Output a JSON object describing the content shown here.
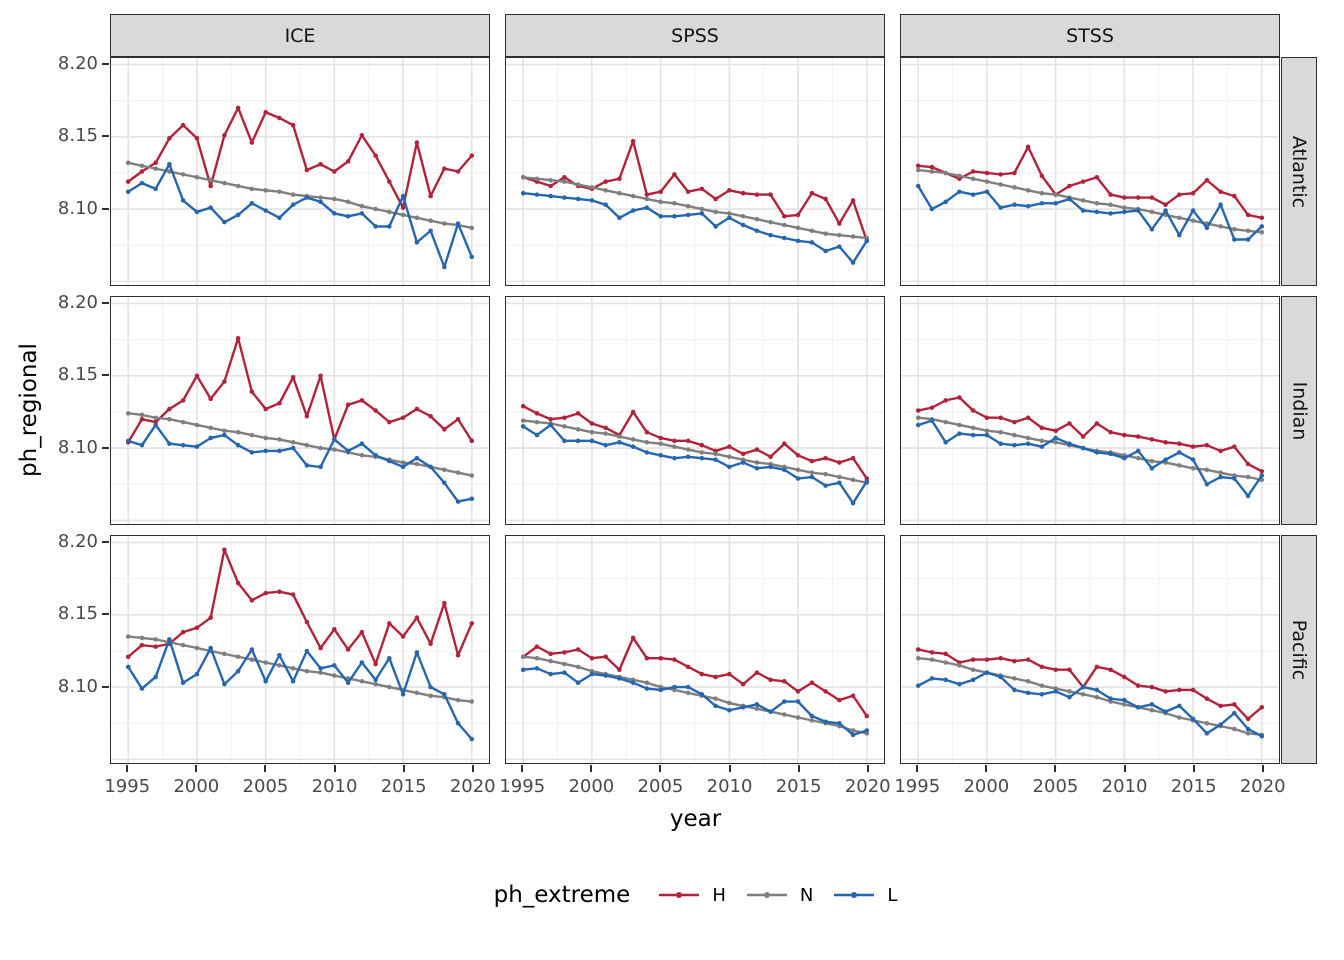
{
  "axes": {
    "y_title": "ph_regional",
    "x_title": "year",
    "y_tick_labels": [
      "8.20",
      "8.15",
      "8.10"
    ],
    "x_tick_labels": [
      "1995",
      "2000",
      "2005",
      "2010",
      "2015",
      "2020"
    ]
  },
  "legend": {
    "title": "ph_extreme",
    "entries": [
      {
        "label": "H",
        "color": "#B2233B"
      },
      {
        "label": "N",
        "color": "#7F7F7F"
      },
      {
        "label": "L",
        "color": "#2566AE"
      }
    ]
  },
  "styles": {
    "grid_major": "#E3E3E3",
    "grid_minor": "#F1F1F1",
    "strip_fill": "#D9D9D9",
    "panel_border": "#2e2e2e",
    "axis_text": "#4a4a4a"
  },
  "chart_data": {
    "type": "line",
    "title": "",
    "xlabel": "year",
    "ylabel": "ph_regional",
    "legend_title": "ph_extreme",
    "legend_position": "bottom",
    "grid": true,
    "facet_cols": [
      "ICE",
      "SPSS",
      "STSS"
    ],
    "facet_rows": [
      "Atlantic",
      "Indian",
      "Pacific"
    ],
    "x": [
      1995,
      1996,
      1997,
      1998,
      1999,
      2000,
      2001,
      2002,
      2003,
      2004,
      2005,
      2006,
      2007,
      2008,
      2009,
      2010,
      2011,
      2012,
      2013,
      2014,
      2015,
      2016,
      2017,
      2018,
      2019,
      2020
    ],
    "x_ticks": [
      1995,
      2000,
      2005,
      2010,
      2015,
      2020
    ],
    "y_ticks": [
      8.2,
      8.15,
      8.1
    ],
    "y_grid_major": [
      8.05,
      8.1,
      8.15,
      8.2
    ],
    "y_grid_minor": [
      8.075,
      8.125,
      8.175
    ],
    "x_grid_minor": [
      1997.5,
      2002.5,
      2007.5,
      2012.5,
      2017.5
    ],
    "xlim": [
      1993.75,
      2021.25
    ],
    "ylim": [
      8.0475,
      8.2045
    ],
    "series_names": [
      "H",
      "N",
      "L"
    ],
    "series_colors": {
      "H": "#B2233B",
      "N": "#7F7F7F",
      "L": "#2566AE"
    },
    "panels": [
      {
        "row": "Atlantic",
        "col": "ICE",
        "H": [
          8.119,
          8.126,
          8.132,
          8.149,
          8.158,
          8.149,
          8.116,
          8.151,
          8.17,
          8.146,
          8.167,
          8.163,
          8.158,
          8.127,
          8.131,
          8.126,
          8.133,
          8.151,
          8.137,
          8.119,
          8.101,
          8.146,
          8.109,
          8.128,
          8.126,
          8.137
        ],
        "N": [
          8.132,
          8.13,
          8.128,
          8.126,
          8.124,
          8.122,
          8.12,
          8.118,
          8.116,
          8.114,
          8.113,
          8.112,
          8.11,
          8.109,
          8.108,
          8.107,
          8.105,
          8.102,
          8.1,
          8.098,
          8.096,
          8.094,
          8.092,
          8.09,
          8.089,
          8.087
        ],
        "L": [
          8.112,
          8.118,
          8.114,
          8.131,
          8.106,
          8.098,
          8.101,
          8.091,
          8.096,
          8.104,
          8.099,
          8.094,
          8.103,
          8.108,
          8.105,
          8.097,
          8.095,
          8.097,
          8.088,
          8.088,
          8.109,
          8.077,
          8.085,
          8.06,
          8.09,
          8.067
        ]
      },
      {
        "row": "Atlantic",
        "col": "SPSS",
        "H": [
          8.122,
          8.119,
          8.116,
          8.122,
          8.116,
          8.114,
          8.119,
          8.121,
          8.147,
          8.11,
          8.112,
          8.124,
          8.112,
          8.114,
          8.107,
          8.113,
          8.111,
          8.11,
          8.11,
          8.095,
          8.096,
          8.111,
          8.107,
          8.09,
          8.106,
          8.078
        ],
        "N": [
          8.122,
          8.121,
          8.12,
          8.119,
          8.117,
          8.115,
          8.113,
          8.111,
          8.109,
          8.107,
          8.105,
          8.104,
          8.102,
          8.1,
          8.098,
          8.097,
          8.095,
          8.093,
          8.091,
          8.089,
          8.087,
          8.085,
          8.083,
          8.082,
          8.081,
          8.08
        ],
        "L": [
          8.111,
          8.11,
          8.109,
          8.108,
          8.107,
          8.106,
          8.103,
          8.094,
          8.099,
          8.101,
          8.095,
          8.095,
          8.096,
          8.097,
          8.088,
          8.094,
          8.089,
          8.085,
          8.082,
          8.08,
          8.078,
          8.077,
          8.071,
          8.074,
          8.063,
          8.078
        ]
      },
      {
        "row": "Atlantic",
        "col": "STSS",
        "H": [
          8.13,
          8.129,
          8.125,
          8.121,
          8.126,
          8.125,
          8.124,
          8.125,
          8.143,
          8.123,
          8.11,
          8.116,
          8.119,
          8.122,
          8.11,
          8.108,
          8.108,
          8.108,
          8.103,
          8.11,
          8.111,
          8.12,
          8.112,
          8.109,
          8.096,
          8.094
        ],
        "N": [
          8.127,
          8.126,
          8.125,
          8.123,
          8.121,
          8.119,
          8.117,
          8.115,
          8.113,
          8.111,
          8.11,
          8.108,
          8.106,
          8.104,
          8.103,
          8.101,
          8.1,
          8.098,
          8.096,
          8.094,
          8.092,
          8.09,
          8.088,
          8.086,
          8.085,
          8.084
        ],
        "L": [
          8.116,
          8.1,
          8.105,
          8.112,
          8.11,
          8.112,
          8.101,
          8.103,
          8.102,
          8.104,
          8.104,
          8.107,
          8.099,
          8.098,
          8.097,
          8.098,
          8.099,
          8.086,
          8.099,
          8.082,
          8.099,
          8.087,
          8.103,
          8.079,
          8.079,
          8.088
        ]
      },
      {
        "row": "Indian",
        "col": "ICE",
        "H": [
          8.104,
          8.12,
          8.118,
          8.127,
          8.133,
          8.15,
          8.134,
          8.146,
          8.176,
          8.139,
          8.127,
          8.131,
          8.149,
          8.122,
          8.15,
          8.106,
          8.13,
          8.133,
          8.126,
          8.118,
          8.121,
          8.127,
          8.122,
          8.113,
          8.12,
          8.105
        ],
        "N": [
          8.124,
          8.123,
          8.121,
          8.12,
          8.118,
          8.116,
          8.114,
          8.112,
          8.111,
          8.109,
          8.107,
          8.106,
          8.104,
          8.102,
          8.1,
          8.099,
          8.097,
          8.095,
          8.094,
          8.092,
          8.09,
          8.089,
          8.087,
          8.085,
          8.083,
          8.081
        ],
        "L": [
          8.105,
          8.102,
          8.116,
          8.103,
          8.102,
          8.101,
          8.107,
          8.109,
          8.102,
          8.097,
          8.098,
          8.098,
          8.1,
          8.088,
          8.087,
          8.106,
          8.098,
          8.103,
          8.095,
          8.091,
          8.087,
          8.093,
          8.087,
          8.076,
          8.063,
          8.065
        ]
      },
      {
        "row": "Indian",
        "col": "SPSS",
        "H": [
          8.129,
          8.124,
          8.12,
          8.121,
          8.124,
          8.117,
          8.114,
          8.109,
          8.125,
          8.111,
          8.107,
          8.105,
          8.105,
          8.102,
          8.098,
          8.101,
          8.096,
          8.099,
          8.094,
          8.103,
          8.095,
          8.091,
          8.093,
          8.09,
          8.093,
          8.079
        ],
        "N": [
          8.119,
          8.118,
          8.117,
          8.115,
          8.113,
          8.111,
          8.11,
          8.108,
          8.106,
          8.104,
          8.103,
          8.101,
          8.099,
          8.097,
          8.096,
          8.094,
          8.092,
          8.09,
          8.089,
          8.087,
          8.085,
          8.083,
          8.082,
          8.08,
          8.078,
          8.076
        ],
        "L": [
          8.115,
          8.109,
          8.116,
          8.105,
          8.105,
          8.105,
          8.102,
          8.104,
          8.101,
          8.097,
          8.095,
          8.093,
          8.094,
          8.093,
          8.092,
          8.087,
          8.09,
          8.086,
          8.087,
          8.085,
          8.079,
          8.08,
          8.074,
          8.076,
          8.062,
          8.077
        ]
      },
      {
        "row": "Indian",
        "col": "STSS",
        "H": [
          8.126,
          8.128,
          8.133,
          8.135,
          8.126,
          8.121,
          8.121,
          8.118,
          8.121,
          8.114,
          8.112,
          8.117,
          8.108,
          8.117,
          8.111,
          8.109,
          8.108,
          8.106,
          8.104,
          8.103,
          8.101,
          8.102,
          8.098,
          8.101,
          8.089,
          8.084
        ],
        "N": [
          8.121,
          8.12,
          8.118,
          8.116,
          8.114,
          8.112,
          8.111,
          8.109,
          8.107,
          8.105,
          8.104,
          8.102,
          8.1,
          8.098,
          8.097,
          8.095,
          8.093,
          8.091,
          8.09,
          8.088,
          8.086,
          8.085,
          8.083,
          8.081,
          8.08,
          8.078
        ],
        "L": [
          8.116,
          8.119,
          8.104,
          8.11,
          8.109,
          8.109,
          8.103,
          8.102,
          8.103,
          8.101,
          8.107,
          8.103,
          8.1,
          8.097,
          8.096,
          8.093,
          8.098,
          8.086,
          8.092,
          8.097,
          8.092,
          8.075,
          8.08,
          8.079,
          8.067,
          8.081
        ]
      },
      {
        "row": "Pacific",
        "col": "ICE",
        "H": [
          8.121,
          8.129,
          8.128,
          8.13,
          8.138,
          8.141,
          8.148,
          8.195,
          8.172,
          8.16,
          8.165,
          8.166,
          8.164,
          8.145,
          8.127,
          8.14,
          8.126,
          8.138,
          8.116,
          8.144,
          8.135,
          8.148,
          8.13,
          8.158,
          8.122,
          8.144
        ],
        "N": [
          8.135,
          8.134,
          8.133,
          8.131,
          8.129,
          8.127,
          8.125,
          8.123,
          8.121,
          8.119,
          8.117,
          8.115,
          8.113,
          8.111,
          8.11,
          8.108,
          8.106,
          8.104,
          8.102,
          8.1,
          8.098,
          8.096,
          8.094,
          8.093,
          8.091,
          8.09
        ],
        "L": [
          8.114,
          8.099,
          8.107,
          8.133,
          8.103,
          8.109,
          8.127,
          8.102,
          8.111,
          8.126,
          8.104,
          8.122,
          8.104,
          8.125,
          8.113,
          8.115,
          8.103,
          8.117,
          8.105,
          8.12,
          8.095,
          8.124,
          8.1,
          8.095,
          8.075,
          8.064
        ]
      },
      {
        "row": "Pacific",
        "col": "SPSS",
        "H": [
          8.121,
          8.128,
          8.123,
          8.124,
          8.126,
          8.12,
          8.121,
          8.112,
          8.134,
          8.12,
          8.12,
          8.119,
          8.114,
          8.109,
          8.107,
          8.109,
          8.102,
          8.11,
          8.105,
          8.104,
          8.097,
          8.103,
          8.097,
          8.091,
          8.094,
          8.08
        ],
        "N": [
          8.121,
          8.12,
          8.118,
          8.116,
          8.114,
          8.111,
          8.109,
          8.107,
          8.105,
          8.103,
          8.1,
          8.098,
          8.096,
          8.094,
          8.092,
          8.089,
          8.087,
          8.085,
          8.083,
          8.081,
          8.079,
          8.077,
          8.075,
          8.073,
          8.07,
          8.068
        ],
        "L": [
          8.112,
          8.113,
          8.109,
          8.11,
          8.103,
          8.109,
          8.108,
          8.106,
          8.103,
          8.099,
          8.098,
          8.1,
          8.1,
          8.095,
          8.087,
          8.084,
          8.086,
          8.088,
          8.083,
          8.09,
          8.09,
          8.08,
          8.076,
          8.075,
          8.067,
          8.07
        ]
      },
      {
        "row": "Pacific",
        "col": "STSS",
        "H": [
          8.126,
          8.124,
          8.123,
          8.117,
          8.119,
          8.119,
          8.12,
          8.118,
          8.119,
          8.114,
          8.112,
          8.112,
          8.1,
          8.114,
          8.112,
          8.107,
          8.101,
          8.1,
          8.097,
          8.098,
          8.098,
          8.092,
          8.087,
          8.088,
          8.078,
          8.086
        ],
        "N": [
          8.12,
          8.119,
          8.117,
          8.115,
          8.112,
          8.11,
          8.108,
          8.106,
          8.104,
          8.101,
          8.099,
          8.097,
          8.095,
          8.093,
          8.09,
          8.088,
          8.086,
          8.084,
          8.082,
          8.079,
          8.077,
          8.075,
          8.073,
          8.071,
          8.068,
          8.067
        ],
        "L": [
          8.101,
          8.106,
          8.105,
          8.102,
          8.105,
          8.11,
          8.107,
          8.098,
          8.096,
          8.095,
          8.097,
          8.093,
          8.1,
          8.098,
          8.092,
          8.091,
          8.086,
          8.088,
          8.083,
          8.087,
          8.078,
          8.068,
          8.074,
          8.082,
          8.071,
          8.066
        ]
      }
    ]
  }
}
